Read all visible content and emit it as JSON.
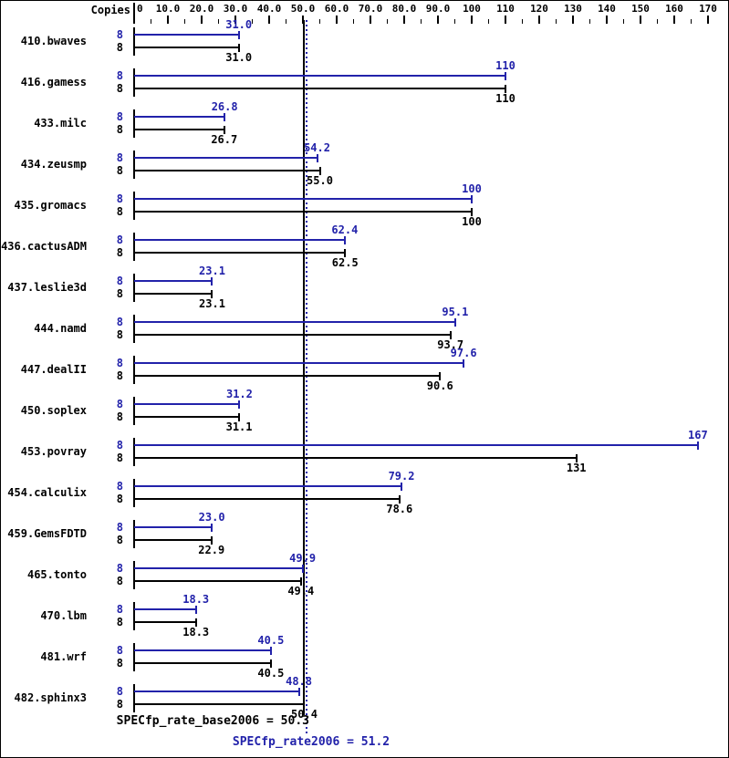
{
  "header": {
    "copies_label": "Copies"
  },
  "colors": {
    "peak": "#2222aa",
    "base": "#000000",
    "background": "#ffffff",
    "border": "#000000"
  },
  "chart_data": {
    "type": "bar",
    "orientation": "horizontal",
    "title": "",
    "xlabel": "Copies",
    "ylabel": "",
    "xlim": [
      0,
      170
    ],
    "x_major_ticks": [
      "0",
      "10.0",
      "20.0",
      "30.0",
      "40.0",
      "50.0",
      "60.0",
      "70.0",
      "80.0",
      "90.0",
      "100",
      "110",
      "120",
      "130",
      "140",
      "150",
      "160",
      "170"
    ],
    "x_major_tick_values": [
      0,
      10,
      20,
      30,
      40,
      50,
      60,
      70,
      80,
      90,
      100,
      110,
      120,
      130,
      140,
      150,
      160,
      170
    ],
    "minor_tick_step": 5,
    "grid": false,
    "copies": "8",
    "series": [
      {
        "name": "SPECfp_rate2006 (peak)",
        "color": "#2222aa"
      },
      {
        "name": "SPECfp_rate_base2006 (base)",
        "color": "#000000"
      }
    ],
    "benchmarks": [
      {
        "name": "410.bwaves",
        "peak": 31.0,
        "base": 31.0,
        "peak_label": "31.0",
        "base_label": "31.0"
      },
      {
        "name": "416.gamess",
        "peak": 110,
        "base": 110,
        "peak_label": "110",
        "base_label": "110"
      },
      {
        "name": "433.milc",
        "peak": 26.8,
        "base": 26.7,
        "peak_label": "26.8",
        "base_label": "26.7"
      },
      {
        "name": "434.zeusmp",
        "peak": 54.2,
        "base": 55.0,
        "peak_label": "54.2",
        "base_label": "55.0"
      },
      {
        "name": "435.gromacs",
        "peak": 100,
        "base": 100,
        "peak_label": "100",
        "base_label": "100"
      },
      {
        "name": "436.cactusADM",
        "peak": 62.4,
        "base": 62.5,
        "peak_label": "62.4",
        "base_label": "62.5"
      },
      {
        "name": "437.leslie3d",
        "peak": 23.1,
        "base": 23.1,
        "peak_label": "23.1",
        "base_label": "23.1"
      },
      {
        "name": "444.namd",
        "peak": 95.1,
        "base": 93.7,
        "peak_label": "95.1",
        "base_label": "93.7"
      },
      {
        "name": "447.dealII",
        "peak": 97.6,
        "base": 90.6,
        "peak_label": "97.6",
        "base_label": "90.6"
      },
      {
        "name": "450.soplex",
        "peak": 31.2,
        "base": 31.1,
        "peak_label": "31.2",
        "base_label": "31.1"
      },
      {
        "name": "453.povray",
        "peak": 167,
        "base": 131,
        "peak_label": "167",
        "base_label": "131"
      },
      {
        "name": "454.calculix",
        "peak": 79.2,
        "base": 78.6,
        "peak_label": "79.2",
        "base_label": "78.6"
      },
      {
        "name": "459.GemsFDTD",
        "peak": 23.0,
        "base": 22.9,
        "peak_label": "23.0",
        "base_label": "22.9"
      },
      {
        "name": "465.tonto",
        "peak": 49.9,
        "base": 49.4,
        "peak_label": "49.9",
        "base_label": "49.4"
      },
      {
        "name": "470.lbm",
        "peak": 18.3,
        "base": 18.3,
        "peak_label": "18.3",
        "base_label": "18.3"
      },
      {
        "name": "481.wrf",
        "peak": 40.5,
        "base": 40.5,
        "peak_label": "40.5",
        "base_label": "40.5"
      },
      {
        "name": "482.sphinx3",
        "peak": 48.8,
        "base": 50.4,
        "peak_label": "48.8",
        "base_label": "50.4"
      }
    ],
    "reference_lines": [
      {
        "label": "SPECfp_rate_base2006 = 50.3",
        "value": 50.3,
        "style": "solid",
        "color": "#000000"
      },
      {
        "label": "SPECfp_rate2006 = 51.2",
        "value": 51.2,
        "style": "dotted",
        "color": "#2222aa"
      }
    ]
  }
}
